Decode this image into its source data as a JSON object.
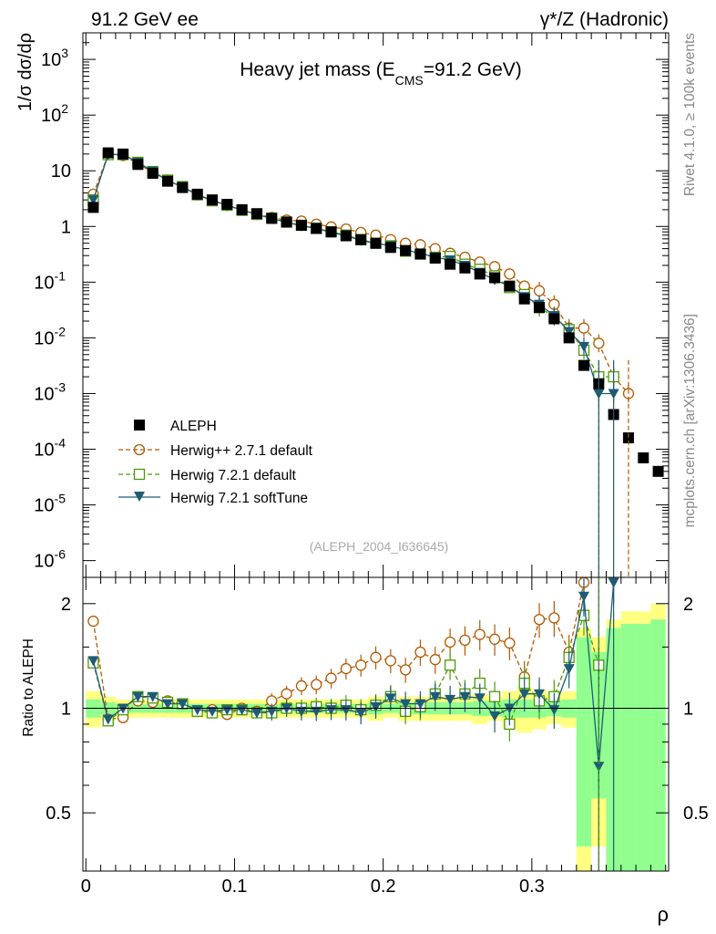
{
  "header": {
    "left": "91.2 GeV ee",
    "right": "γ*/Z (Hadronic)"
  },
  "side_labels": {
    "top": "Rivet 4.1.0, ≥ 100k events",
    "bottom": "mcplots.cern.ch [arXiv:1306.3436]"
  },
  "chart_data": [
    {
      "type": "line",
      "panel": "main",
      "title_main": "Heavy jet mass (E",
      "title_sub": "CMS",
      "title_tail": "=91.2 GeV)",
      "ylabel": "1/σ  dσ/dρ",
      "yscale": "log",
      "ylim": [
        5e-07,
        3000
      ],
      "xlim": [
        -0.002,
        0.392
      ],
      "grid": false,
      "ytick_labels": [
        {
          "base": "10",
          "exp": "-6",
          "value": 1e-06
        },
        {
          "base": "10",
          "exp": "-5",
          "value": 1e-05
        },
        {
          "base": "10",
          "exp": "-4",
          "value": 0.0001
        },
        {
          "base": "10",
          "exp": "-3",
          "value": 0.001
        },
        {
          "base": "10",
          "exp": "-2",
          "value": 0.01
        },
        {
          "base": "10",
          "exp": "-1",
          "value": 0.1
        },
        {
          "base": "1",
          "exp": "",
          "value": 1
        },
        {
          "base": "10",
          "exp": "",
          "value": 10
        },
        {
          "base": "10",
          "exp": "2",
          "value": 100
        },
        {
          "base": "10",
          "exp": "3",
          "value": 1000
        }
      ],
      "watermark": "(ALEPH_2004_I636645)",
      "legend": {
        "placement": "bottom-left",
        "entries": [
          "ALEPH",
          "Herwig++ 2.7.1 default",
          "Herwig 7.2.1 default",
          "Herwig 7.2.1 softTune"
        ]
      },
      "x": [
        0.005,
        0.015,
        0.025,
        0.035,
        0.045,
        0.055,
        0.065,
        0.075,
        0.085,
        0.095,
        0.105,
        0.115,
        0.125,
        0.135,
        0.145,
        0.155,
        0.165,
        0.175,
        0.185,
        0.195,
        0.205,
        0.215,
        0.225,
        0.235,
        0.245,
        0.255,
        0.265,
        0.275,
        0.285,
        0.295,
        0.305,
        0.315,
        0.325,
        0.335,
        0.345,
        0.355,
        0.365,
        0.375,
        0.385
      ],
      "series": [
        {
          "name": "ALEPH",
          "color": "#000000",
          "values": [
            2.2,
            21,
            20,
            13,
            9.0,
            6.5,
            5.0,
            3.8,
            3.0,
            2.5,
            2.0,
            1.7,
            1.4,
            1.2,
            1.05,
            0.92,
            0.8,
            0.68,
            0.58,
            0.5,
            0.42,
            0.37,
            0.32,
            0.27,
            0.21,
            0.18,
            0.14,
            0.12,
            0.085,
            0.05,
            0.035,
            0.022,
            0.01,
            0.0032,
            0.0015,
            0.00042,
            0.00016,
            7e-05,
            4e-05
          ]
        },
        {
          "name": "Herwig++ 2.7.1 default",
          "color": "#b35900",
          "values": [
            3.8,
            19.5,
            18.8,
            13.5,
            9.3,
            6.8,
            5.1,
            3.7,
            2.95,
            2.4,
            2.0,
            1.65,
            1.45,
            1.3,
            1.25,
            1.1,
            0.98,
            0.9,
            0.78,
            0.7,
            0.58,
            0.5,
            0.47,
            0.4,
            0.33,
            0.28,
            0.23,
            0.19,
            0.14,
            0.085,
            0.07,
            0.04,
            0.015,
            0.015,
            0.008,
            0.002,
            0.001,
            null,
            null
          ]
        },
        {
          "name": "Herwig 7.2.1 default",
          "color": "#4e9a06",
          "values": [
            3.0,
            19.5,
            19.5,
            14.2,
            9.7,
            6.8,
            5.2,
            3.7,
            2.9,
            2.4,
            1.95,
            1.65,
            1.4,
            1.2,
            1.05,
            0.93,
            0.8,
            0.7,
            0.58,
            0.5,
            0.45,
            0.36,
            0.32,
            0.28,
            0.29,
            0.21,
            0.17,
            0.13,
            0.08,
            0.06,
            0.035,
            0.024,
            0.014,
            0.006,
            0.002,
            0.002,
            null,
            null,
            null
          ]
        },
        {
          "name": "Herwig 7.2.1 softTune",
          "color": "#1f5b75",
          "values": [
            3.0,
            19.5,
            19.8,
            14.2,
            9.8,
            6.6,
            5.2,
            3.7,
            2.95,
            2.4,
            1.98,
            1.65,
            1.38,
            1.2,
            1.02,
            0.93,
            0.78,
            0.68,
            0.56,
            0.5,
            0.45,
            0.38,
            0.33,
            0.28,
            0.25,
            0.2,
            0.15,
            0.11,
            0.085,
            0.055,
            0.04,
            0.025,
            0.013,
            0.007,
            0.001,
            0.001,
            null,
            null,
            null
          ]
        }
      ]
    },
    {
      "type": "line",
      "panel": "ratio",
      "ylabel": "Ratio to ALEPH",
      "xlabel": "ρ",
      "ylim": [
        0.34,
        2.38
      ],
      "yscale": "log",
      "xlim": [
        -0.002,
        0.392
      ],
      "ytick_labels": [
        {
          "label": "0.5",
          "value": 0.5
        },
        {
          "label": "1",
          "value": 1
        },
        {
          "label": "2",
          "value": 2
        }
      ],
      "xtick_labels": [
        {
          "label": "0",
          "value": 0
        },
        {
          "label": "0.1",
          "value": 0.1
        },
        {
          "label": "0.2",
          "value": 0.2
        },
        {
          "label": "0.3",
          "value": 0.3
        }
      ],
      "x": [
        0.005,
        0.015,
        0.025,
        0.035,
        0.045,
        0.055,
        0.065,
        0.075,
        0.085,
        0.095,
        0.105,
        0.115,
        0.125,
        0.135,
        0.145,
        0.155,
        0.165,
        0.175,
        0.185,
        0.195,
        0.205,
        0.215,
        0.225,
        0.235,
        0.245,
        0.255,
        0.265,
        0.275,
        0.285,
        0.295,
        0.305,
        0.315,
        0.325,
        0.335,
        0.345,
        0.355,
        0.365,
        0.375,
        0.385
      ],
      "bands": {
        "yellow_halfwidth": [
          0.12,
          0.08,
          0.06,
          0.06,
          0.06,
          0.06,
          0.06,
          0.06,
          0.06,
          0.06,
          0.06,
          0.06,
          0.06,
          0.06,
          0.06,
          0.06,
          0.06,
          0.06,
          0.06,
          0.08,
          0.06,
          0.08,
          0.08,
          0.08,
          0.08,
          0.08,
          0.1,
          0.08,
          0.12,
          0.15,
          0.13,
          0.1,
          0.12,
          0.7,
          0.6,
          0.8,
          0.9,
          0.9,
          1.0
        ],
        "green_halfwidth": [
          0.06,
          0.04,
          0.03,
          0.03,
          0.03,
          0.03,
          0.03,
          0.03,
          0.03,
          0.03,
          0.03,
          0.03,
          0.03,
          0.03,
          0.03,
          0.03,
          0.03,
          0.03,
          0.03,
          0.04,
          0.03,
          0.04,
          0.04,
          0.04,
          0.04,
          0.04,
          0.05,
          0.05,
          0.06,
          0.06,
          0.06,
          0.05,
          0.06,
          0.6,
          0.45,
          0.7,
          0.75,
          0.75,
          0.8
        ]
      },
      "series": [
        {
          "name": "Herwig++ 2.7.1 default",
          "color": "#b35900",
          "values": [
            1.78,
            0.93,
            0.94,
            1.05,
            1.04,
            1.05,
            1.03,
            0.98,
            0.99,
            0.96,
            1.0,
            0.98,
            1.05,
            1.1,
            1.16,
            1.17,
            1.22,
            1.3,
            1.33,
            1.4,
            1.37,
            1.29,
            1.45,
            1.38,
            1.55,
            1.57,
            1.63,
            1.58,
            1.54,
            1.23,
            1.8,
            1.82,
            1.45,
            2.3,
            null,
            null,
            null,
            null,
            null
          ]
        },
        {
          "name": "Herwig 7.2.1 default",
          "color": "#4e9a06",
          "values": [
            1.35,
            0.92,
            0.99,
            1.08,
            1.07,
            1.04,
            1.03,
            0.98,
            0.97,
            0.99,
            0.99,
            0.97,
            0.97,
            1.0,
            1.0,
            1.01,
            1.0,
            1.02,
            0.99,
            1.02,
            1.08,
            0.98,
            1.01,
            1.1,
            1.33,
            1.1,
            1.18,
            1.08,
            0.9,
            1.18,
            1.05,
            1.08,
            1.4,
            1.85,
            1.33,
            null,
            null,
            null,
            null
          ]
        },
        {
          "name": "Herwig 7.2.1 softTune",
          "color": "#1f5b75",
          "values": [
            1.37,
            0.93,
            1.0,
            1.08,
            1.08,
            1.03,
            1.03,
            0.99,
            0.98,
            0.99,
            0.99,
            0.97,
            0.98,
            1.0,
            0.98,
            0.98,
            0.99,
            0.99,
            0.97,
            1.01,
            1.07,
            1.03,
            1.03,
            1.08,
            1.06,
            1.08,
            1.07,
            0.95,
            1.0,
            1.1,
            1.1,
            0.99,
            1.3,
            2.1,
            0.68,
            2.3,
            null,
            null,
            null
          ]
        }
      ]
    }
  ]
}
